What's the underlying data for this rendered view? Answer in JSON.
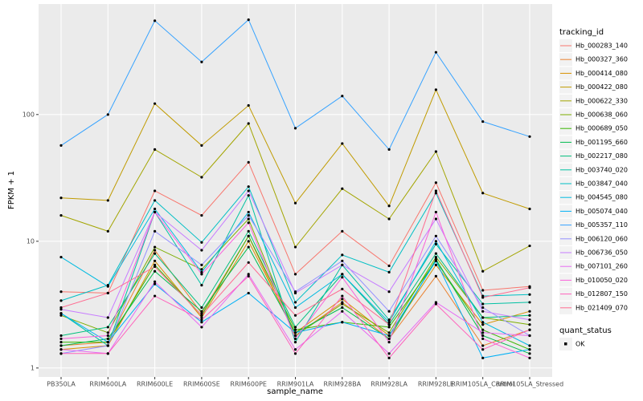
{
  "chart_data": {
    "type": "line",
    "log_y": true,
    "grid": true,
    "x_label": "sample_name",
    "y_label": "FPKM + 1",
    "categories": [
      "PB350LA",
      "RRIM600LA",
      "RRIM600LE",
      "RRIM600SE",
      "RRIM600PE",
      "RRIM901LA",
      "RRIM928BA",
      "RRIM928LA",
      "RRIM928LE",
      "RRIM105LA_Control",
      "RRIM105LA_Stressed"
    ],
    "ylim": [
      0.85,
      745
    ],
    "yticks": [
      1,
      10,
      100
    ],
    "legend_title": "tracking_id",
    "point_legend_title": "quant_status",
    "point_legend_label": "OK",
    "point_color": "#000000",
    "series": [
      {
        "name": "Hb_000283_140",
        "color": "#F8766D",
        "values": [
          4,
          3.9,
          25,
          16,
          42,
          5.5,
          12,
          6.4,
          29,
          4.1,
          4.4
        ]
      },
      {
        "name": "Hb_000327_360",
        "color": "#EA8331",
        "values": [
          1.5,
          1.6,
          8.5,
          2.7,
          11,
          1.8,
          3.3,
          1.7,
          5.3,
          1.5,
          2.0
        ]
      },
      {
        "name": "Hb_000414_080",
        "color": "#D89000",
        "values": [
          1.4,
          1.5,
          7,
          2.5,
          10,
          1.9,
          3.5,
          1.8,
          6.5,
          2.2,
          2.8
        ]
      },
      {
        "name": "Hb_000422_080",
        "color": "#C09B00",
        "values": [
          22,
          21,
          122,
          57,
          118,
          20,
          59,
          19,
          157,
          24,
          18
        ]
      },
      {
        "name": "Hb_000622_330",
        "color": "#A3A500",
        "values": [
          16,
          12,
          53,
          32,
          85,
          9,
          26,
          15,
          51,
          5.8,
          9.2
        ]
      },
      {
        "name": "Hb_000638_060",
        "color": "#7CAE00",
        "values": [
          2.6,
          1.9,
          9,
          6,
          15,
          1.8,
          3.2,
          1.9,
          7.5,
          2.5,
          2.2
        ]
      },
      {
        "name": "Hb_000689_050",
        "color": "#39B600",
        "values": [
          1.6,
          1.6,
          6.5,
          2.6,
          11,
          2.0,
          2.3,
          2.1,
          7,
          2.0,
          1.4
        ]
      },
      {
        "name": "Hb_001195_660",
        "color": "#00BB4E",
        "values": [
          1.5,
          1.7,
          5.8,
          2.8,
          9,
          1.9,
          3.0,
          1.7,
          7.2,
          1.8,
          1.3
        ]
      },
      {
        "name": "Hb_002217_080",
        "color": "#00BF7D",
        "values": [
          1.8,
          2.1,
          8,
          3,
          12,
          2.1,
          5.5,
          2.2,
          8,
          2.5,
          2.6
        ]
      },
      {
        "name": "Hb_003740_020",
        "color": "#00C1A3",
        "values": [
          2.7,
          1.5,
          17,
          4.5,
          23,
          1.6,
          6.5,
          2.4,
          9.5,
          3.2,
          3.3
        ]
      },
      {
        "name": "Hb_003847_040",
        "color": "#00BFC4",
        "values": [
          3.4,
          4.5,
          21,
          9.8,
          27,
          3.3,
          7.8,
          5.7,
          24,
          3.7,
          3.8
        ]
      },
      {
        "name": "Hb_004545_080",
        "color": "#00BAE0",
        "values": [
          7.5,
          4.4,
          18,
          5.7,
          17,
          3.0,
          5.5,
          2.3,
          10,
          2.3,
          1.5
        ]
      },
      {
        "name": "Hb_005074_040",
        "color": "#00B0F6",
        "values": [
          2.7,
          1.6,
          4.6,
          2.3,
          3.9,
          1.9,
          2.3,
          1.8,
          7,
          1.2,
          1.4
        ]
      },
      {
        "name": "Hb_005357_110",
        "color": "#35A2FF",
        "values": [
          57,
          100,
          550,
          260,
          560,
          78,
          140,
          53,
          310,
          88,
          67
        ]
      },
      {
        "name": "Hb_006120_060",
        "color": "#9590FF",
        "values": [
          1.3,
          1.5,
          12,
          6.5,
          16,
          4.0,
          7,
          2.8,
          11,
          3.0,
          1.8
        ]
      },
      {
        "name": "Hb_006736_050",
        "color": "#C77CFF",
        "values": [
          2.9,
          2.5,
          17,
          8.5,
          25,
          3.9,
          6.5,
          4.0,
          15,
          2.8,
          2.4
        ]
      },
      {
        "name": "Hb_007101_260",
        "color": "#E76BF3",
        "values": [
          1.4,
          1.3,
          4.8,
          2.1,
          5.5,
          1.4,
          2.8,
          1.3,
          3.3,
          1.9,
          1.8
        ]
      },
      {
        "name": "Hb_010050_020",
        "color": "#FA62DB",
        "values": [
          1.7,
          1.8,
          17,
          5.5,
          14,
          1.7,
          5.2,
          1.6,
          17,
          1.7,
          1.2
        ]
      },
      {
        "name": "Hb_012807_150",
        "color": "#FF62BC",
        "values": [
          1.3,
          1.3,
          3.7,
          2.4,
          5.3,
          1.3,
          3.7,
          1.2,
          3.2,
          1.4,
          2.0
        ]
      },
      {
        "name": "Hb_021409_070",
        "color": "#FF6C91",
        "values": [
          3.0,
          3.9,
          6.3,
          2.6,
          6.8,
          2.6,
          4.2,
          2.2,
          25,
          3.6,
          4.3
        ]
      }
    ]
  }
}
